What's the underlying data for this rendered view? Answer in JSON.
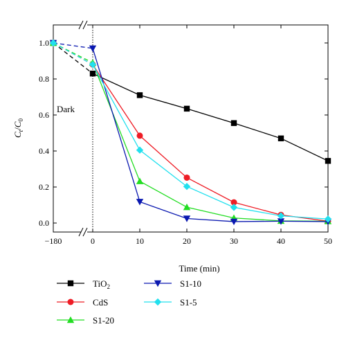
{
  "chart_data": {
    "type": "line",
    "xlabel": "Time (min)",
    "ylabel": "C_t/C_0",
    "ylim": [
      -0.05,
      1.1
    ],
    "x_ticks": [
      "−180",
      "0",
      "10",
      "20",
      "30",
      "40",
      "50"
    ],
    "y_ticks": [
      "0.0",
      "0.2",
      "0.4",
      "0.6",
      "0.8",
      "1.0"
    ],
    "x_axis_break": "between −180 and 0",
    "annotations": [
      {
        "text": "Dark"
      }
    ],
    "grid": false,
    "legend_position": "below",
    "series": [
      {
        "name": "TiO2",
        "marker": "square",
        "color": "#000000",
        "x": [
          -180,
          0,
          10,
          20,
          30,
          40,
          50
        ],
        "y": [
          1.0,
          0.83,
          0.71,
          0.635,
          0.555,
          0.47,
          0.345
        ]
      },
      {
        "name": "CdS",
        "marker": "circle",
        "color": "#ee1c25",
        "x": [
          -180,
          0,
          10,
          20,
          30,
          40,
          50
        ],
        "y": [
          1.0,
          0.88,
          0.485,
          0.252,
          0.115,
          0.045,
          0.01
        ]
      },
      {
        "name": "S1-20",
        "marker": "triangle-up",
        "color": "#22dd22",
        "x": [
          -180,
          0,
          10,
          20,
          30,
          40,
          50
        ],
        "y": [
          1.0,
          0.89,
          0.232,
          0.088,
          0.028,
          0.012,
          0.01
        ]
      },
      {
        "name": "S1-10",
        "marker": "triangle-down",
        "color": "#0a18b0",
        "x": [
          -180,
          0,
          10,
          20,
          30,
          40,
          50
        ],
        "y": [
          1.0,
          0.97,
          0.118,
          0.025,
          0.008,
          0.01,
          0.008
        ]
      },
      {
        "name": "S1-5",
        "marker": "diamond",
        "color": "#22e0ee",
        "x": [
          -180,
          0,
          10,
          20,
          30,
          40,
          50
        ],
        "y": [
          1.0,
          0.88,
          0.405,
          0.203,
          0.087,
          0.04,
          0.022
        ]
      }
    ]
  }
}
